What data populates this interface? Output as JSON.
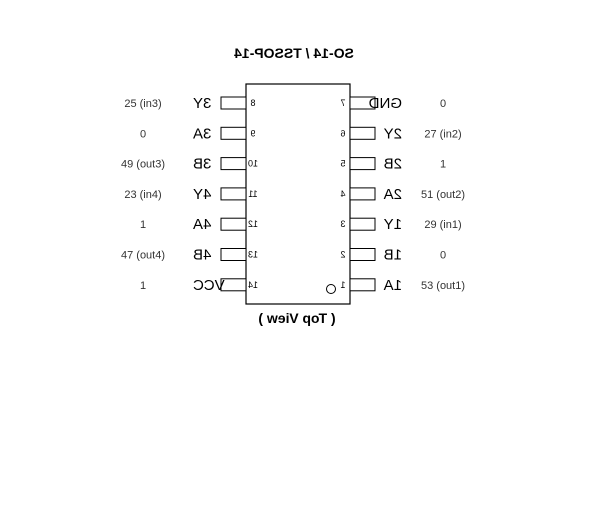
{
  "chip": {
    "title": "SO-14 / TSSOP-14",
    "subtitle": "( Top View )"
  },
  "left_pins": [
    {
      "num": "8",
      "label": "3Y",
      "net": "25 (in3)"
    },
    {
      "num": "9",
      "label": "3A",
      "net": "0"
    },
    {
      "num": "10",
      "label": "3B",
      "net": "49 (out3)"
    },
    {
      "num": "11",
      "label": "4Y",
      "net": "23 (in4)"
    },
    {
      "num": "12",
      "label": "4A",
      "net": "1"
    },
    {
      "num": "13",
      "label": "4B",
      "net": "47 (out4)"
    },
    {
      "num": "14",
      "label": "VCC",
      "net": "1"
    }
  ],
  "right_pins": [
    {
      "num": "7",
      "label": "GND",
      "net": "0"
    },
    {
      "num": "6",
      "label": "2Y",
      "net": "27 (in2)"
    },
    {
      "num": "5",
      "label": "2B",
      "net": "1"
    },
    {
      "num": "4",
      "label": "2A",
      "net": "51 (out2)"
    },
    {
      "num": "3",
      "label": "1Y",
      "net": "29 (in1)"
    },
    {
      "num": "2",
      "label": "1B",
      "net": "0"
    },
    {
      "num": "1",
      "label": "1A",
      "net": "53 (out1)"
    }
  ]
}
